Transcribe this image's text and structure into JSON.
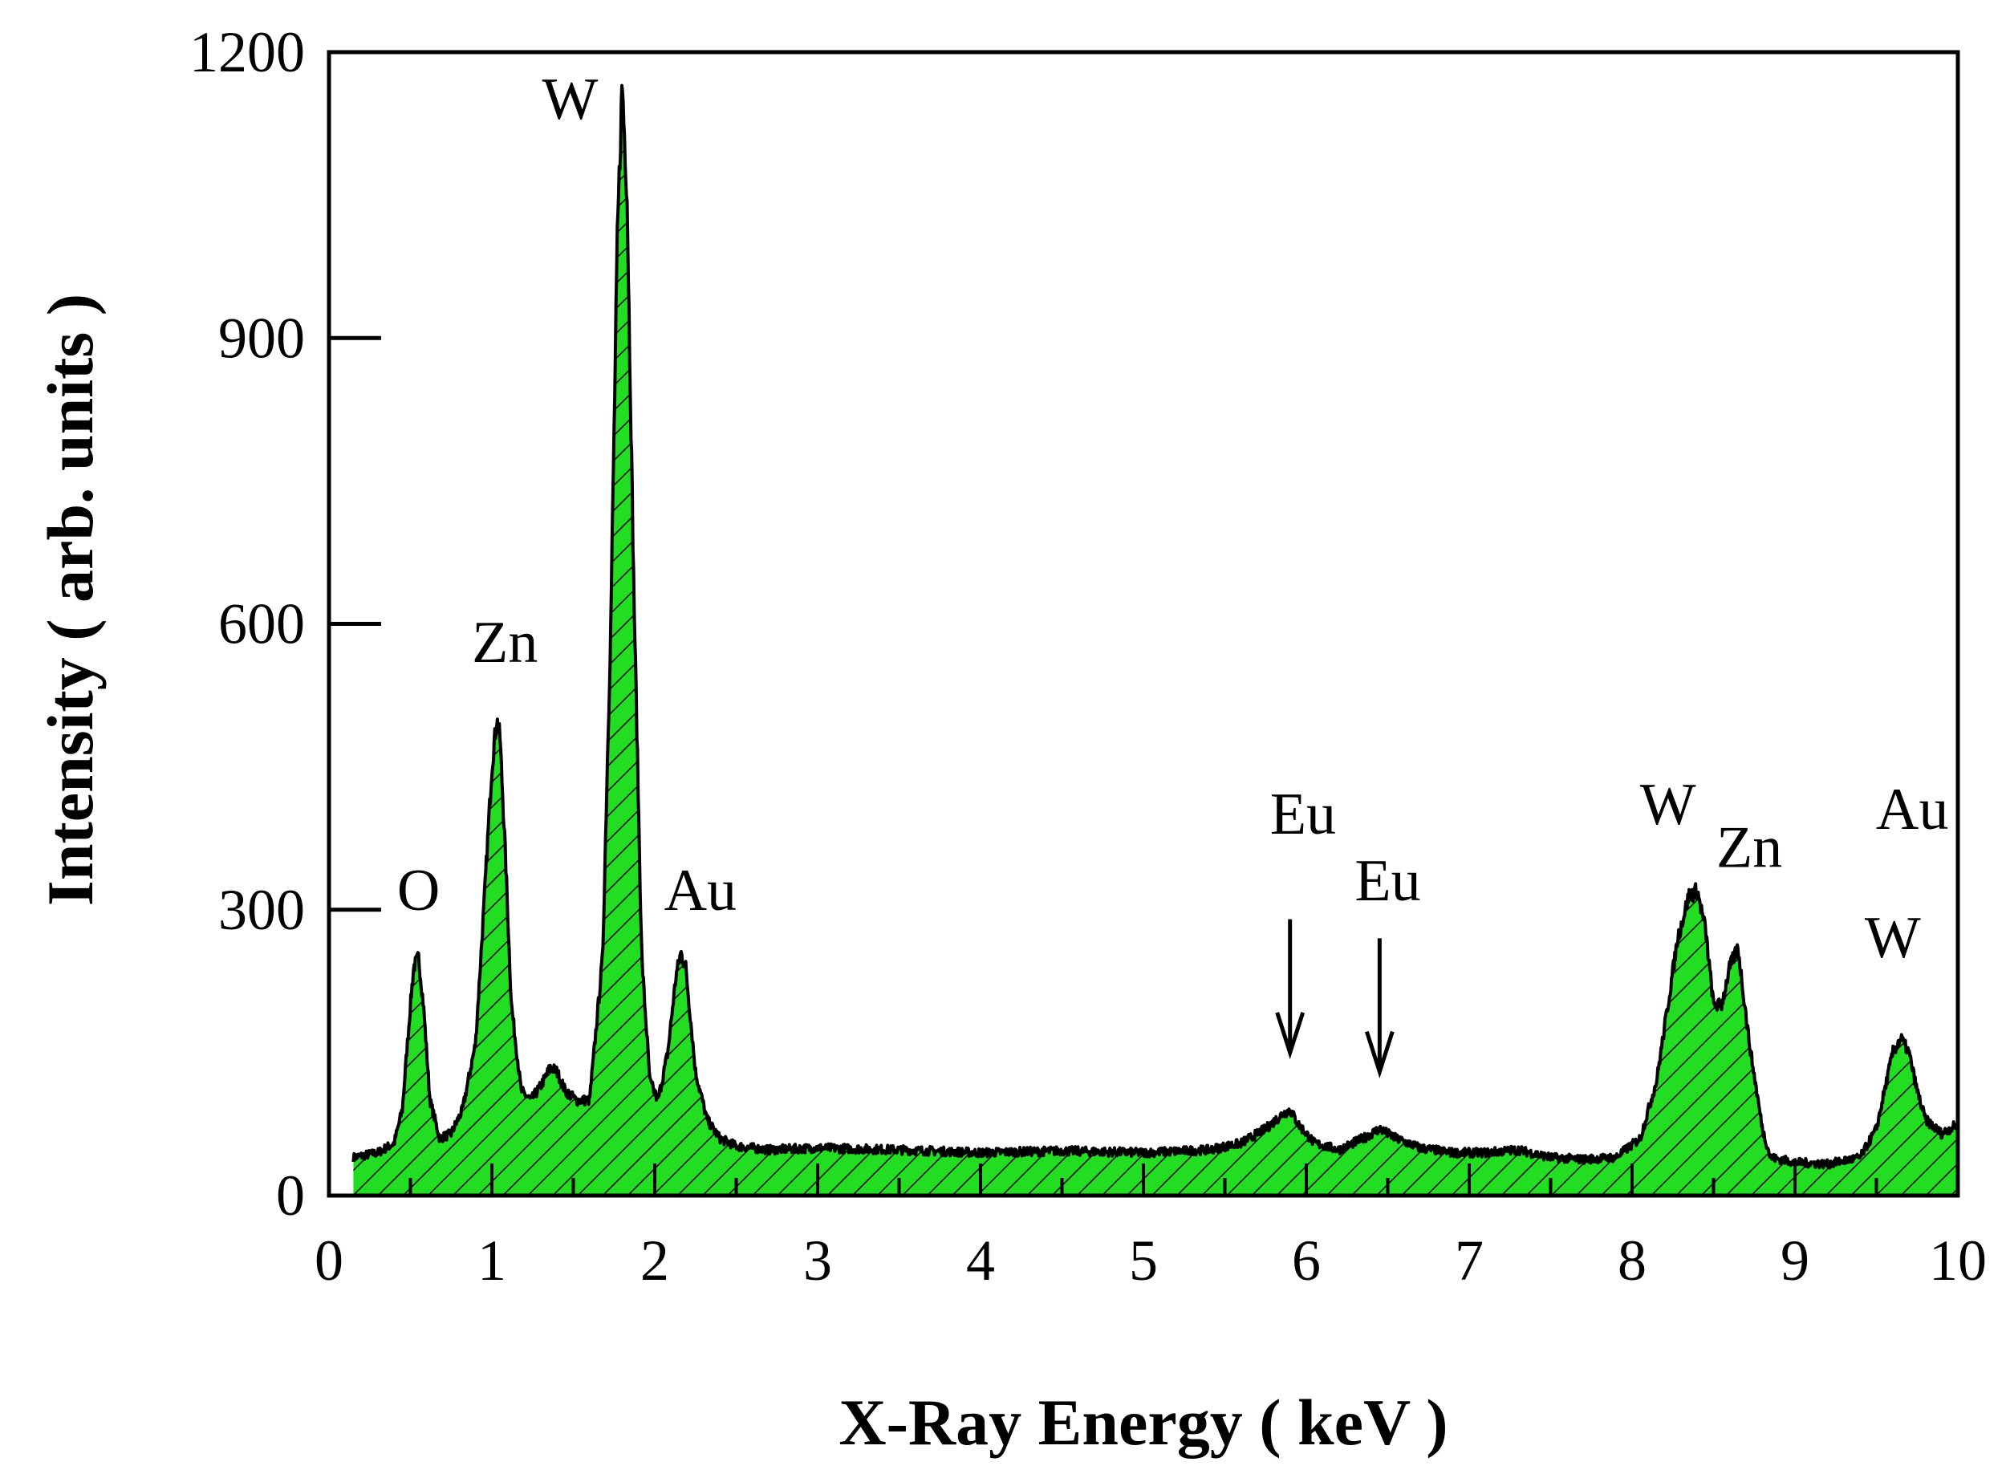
{
  "chart_data": {
    "type": "area",
    "xlabel": "X-Ray Energy ( keV )",
    "ylabel": "Intensity ( arb. units )",
    "xlim": [
      0,
      10
    ],
    "ylim": [
      0,
      1200
    ],
    "x_ticks": [
      0,
      1,
      2,
      3,
      4,
      5,
      6,
      7,
      8,
      9,
      10
    ],
    "y_ticks": [
      0,
      300,
      600,
      900,
      1200
    ],
    "grid": false,
    "legend": "none",
    "fill_color": "#22dd22",
    "line_color": "#000000",
    "hatch": "diagonal",
    "series": [
      {
        "x": [
          0.15,
          0.3,
          0.4,
          0.45,
          0.5,
          0.52,
          0.55,
          0.58,
          0.62,
          0.68,
          0.75,
          0.82,
          0.9,
          0.95,
          1.0,
          1.03,
          1.05,
          1.08,
          1.12,
          1.18,
          1.24,
          1.3,
          1.36,
          1.4,
          1.45,
          1.52,
          1.6,
          1.68,
          1.73,
          1.77,
          1.8,
          1.83,
          1.87,
          1.92,
          1.97,
          2.02,
          2.08,
          2.13,
          2.16,
          2.19,
          2.25,
          2.32,
          2.4,
          2.5,
          2.7,
          3.0,
          3.5,
          4.0,
          4.5,
          5.0,
          5.4,
          5.6,
          5.75,
          5.85,
          5.9,
          5.95,
          6.05,
          6.2,
          6.35,
          6.45,
          6.55,
          6.7,
          6.9,
          7.1,
          7.3,
          7.5,
          7.7,
          7.9,
          8.05,
          8.15,
          8.22,
          8.28,
          8.35,
          8.4,
          8.45,
          8.5,
          8.55,
          8.6,
          8.65,
          8.72,
          8.8,
          8.85,
          9.0,
          9.2,
          9.4,
          9.5,
          9.55,
          9.6,
          9.65,
          9.7,
          9.75,
          9.8,
          9.9,
          10.0
        ],
        "y": [
          40,
          45,
          55,
          90,
          200,
          240,
          250,
          200,
          100,
          60,
          65,
          90,
          160,
          300,
          450,
          500,
          480,
          370,
          200,
          110,
          100,
          115,
          135,
          130,
          110,
          100,
          100,
          250,
          600,
          1000,
          1170,
          1050,
          650,
          250,
          120,
          100,
          150,
          230,
          255,
          240,
          130,
          80,
          60,
          52,
          48,
          50,
          48,
          45,
          47,
          45,
          48,
          55,
          70,
          85,
          90,
          75,
          55,
          48,
          60,
          70,
          60,
          50,
          45,
          45,
          48,
          40,
          38,
          40,
          60,
          120,
          200,
          270,
          315,
          320,
          280,
          200,
          200,
          240,
          260,
          160,
          70,
          40,
          35,
          33,
          40,
          70,
          110,
          150,
          165,
          150,
          110,
          80,
          65,
          75
        ]
      }
    ],
    "annotations": [
      {
        "text": "O",
        "x": 0.55,
        "y": 300
      },
      {
        "text": "Zn",
        "x": 1.08,
        "y": 560
      },
      {
        "text": "W",
        "x": 1.48,
        "y": 1130
      },
      {
        "text": "Au",
        "x": 2.28,
        "y": 300
      },
      {
        "text": "Eu",
        "x": 5.98,
        "y": 380
      },
      {
        "text": "Eu",
        "x": 6.5,
        "y": 310
      },
      {
        "text": "W",
        "x": 8.22,
        "y": 390
      },
      {
        "text": "Zn",
        "x": 8.72,
        "y": 345
      },
      {
        "text": "Au",
        "x": 9.72,
        "y": 385
      },
      {
        "text": "W",
        "x": 9.6,
        "y": 250
      }
    ],
    "arrows": [
      {
        "x": 5.9,
        "y_from": 290,
        "y_to": 150
      },
      {
        "x": 6.45,
        "y_from": 270,
        "y_to": 130
      }
    ]
  }
}
